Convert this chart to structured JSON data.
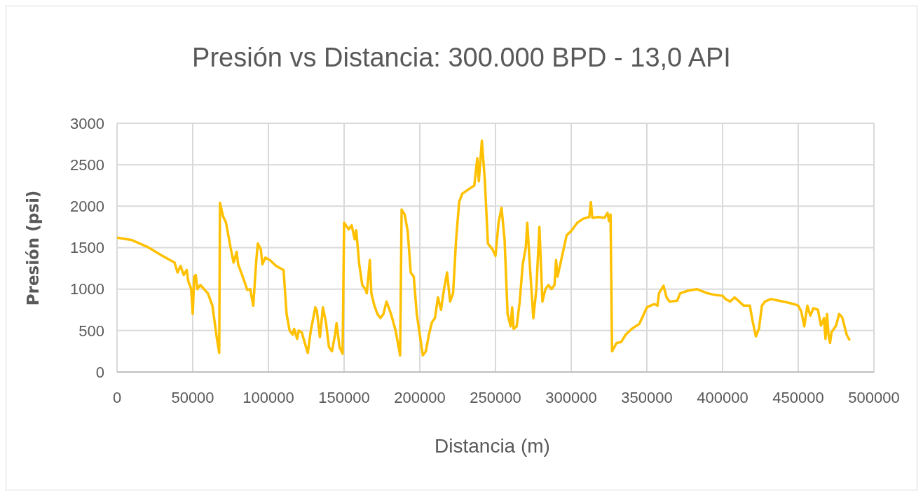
{
  "chart_data": {
    "type": "line",
    "title": "Presión vs Distancia: 300.000 BPD - 13,0 API",
    "xlabel": "Distancia (m)",
    "ylabel": "Presión (psi)",
    "x": [
      0,
      10000,
      20000,
      30000,
      38000,
      40000,
      42000,
      44000,
      46000,
      47000,
      49000,
      50000,
      51000,
      52000,
      53000,
      55000,
      60000,
      63000,
      66000,
      67500,
      68000,
      70000,
      72000,
      75000,
      77000,
      79000,
      80000,
      84000,
      86000,
      88000,
      90000,
      92000,
      93000,
      95000,
      96000,
      98000,
      101000,
      105000,
      110000,
      112000,
      114000,
      116000,
      117000,
      119000,
      120000,
      122000,
      124000,
      126000,
      128000,
      131000,
      132000,
      134000,
      136000,
      138000,
      140000,
      142000,
      144000,
      145000,
      147000,
      149000,
      150000,
      152000,
      153000,
      155000,
      157000,
      158000,
      160000,
      162000,
      164000,
      165000,
      167000,
      168000,
      170000,
      172000,
      174000,
      176000,
      178000,
      181000,
      184000,
      186000,
      187000,
      188000,
      190000,
      192000,
      194000,
      196000,
      198000,
      200000,
      202000,
      204000,
      206000,
      208000,
      210000,
      212000,
      214000,
      216000,
      218000,
      220000,
      222000,
      224000,
      226000,
      228000,
      232000,
      236000,
      238000,
      239000,
      241000,
      243000,
      245000,
      248000,
      250000,
      252000,
      254000,
      256000,
      258000,
      260000,
      261000,
      262000,
      264000,
      266000,
      268000,
      270000,
      271000,
      273000,
      275000,
      277000,
      279000,
      281000,
      283000,
      285000,
      287000,
      289000,
      290000,
      291000,
      294000,
      297000,
      300000,
      304000,
      308000,
      312000,
      313000,
      314000,
      318000,
      322000,
      324000,
      325000,
      326000,
      327000,
      330000,
      333000,
      336000,
      340000,
      345000,
      348000,
      350000,
      355000,
      357000,
      358000,
      361000,
      363000,
      365000,
      370000,
      372000,
      377000,
      383000,
      390000,
      395000,
      400000,
      402000,
      405000,
      408000,
      411000,
      414000,
      418000,
      420000,
      422000,
      424000,
      426000,
      428000,
      432000,
      440000,
      447000,
      450000,
      452000,
      454000,
      456000,
      458000,
      460000,
      463000,
      465000,
      467000,
      468000,
      469000,
      470000,
      471000,
      472000,
      475000,
      477000,
      479000,
      482000,
      484000
    ],
    "series": [
      {
        "color": "#ffc000",
        "values": [
          1620,
          1590,
          1510,
          1400,
          1320,
          1200,
          1280,
          1170,
          1230,
          1100,
          1000,
          700,
          1150,
          1170,
          1000,
          1050,
          950,
          800,
          400,
          230,
          2040,
          1880,
          1800,
          1500,
          1320,
          1450,
          1300,
          1100,
          990,
          1000,
          800,
          1350,
          1550,
          1480,
          1300,
          1380,
          1350,
          1280,
          1230,
          700,
          500,
          450,
          520,
          400,
          500,
          480,
          350,
          230,
          500,
          780,
          740,
          420,
          780,
          600,
          300,
          250,
          450,
          590,
          300,
          220,
          1800,
          1750,
          1720,
          1770,
          1600,
          1710,
          1300,
          1050,
          1000,
          950,
          1350,
          950,
          800,
          700,
          650,
          700,
          850,
          700,
          500,
          300,
          200,
          1960,
          1900,
          1700,
          1200,
          1150,
          700,
          450,
          200,
          250,
          450,
          600,
          650,
          900,
          750,
          1000,
          1200,
          850,
          950,
          1600,
          2050,
          2150,
          2200,
          2250,
          2580,
          2300,
          2790,
          2300,
          1550,
          1480,
          1400,
          1800,
          1980,
          1600,
          700,
          550,
          780,
          520,
          550,
          850,
          1300,
          1500,
          1800,
          1200,
          650,
          1000,
          1750,
          850,
          1000,
          1050,
          1000,
          1050,
          1350,
          1150,
          1400,
          1650,
          1700,
          1800,
          1850,
          1870,
          2050,
          1860,
          1870,
          1860,
          1920,
          1820,
          1900,
          250,
          350,
          360,
          450,
          520,
          580,
          700,
          780,
          820,
          800,
          950,
          1040,
          900,
          850,
          860,
          950,
          980,
          1000,
          950,
          930,
          920,
          880,
          850,
          900,
          850,
          800,
          800,
          600,
          430,
          520,
          800,
          850,
          880,
          850,
          820,
          800,
          730,
          550,
          800,
          680,
          770,
          750,
          560,
          650,
          400,
          700,
          450,
          350,
          480,
          560,
          700,
          660,
          450,
          380
        ]
      }
    ],
    "xlim": [
      0,
      500000
    ],
    "xticks": [
      0,
      50000,
      100000,
      150000,
      200000,
      250000,
      300000,
      350000,
      400000,
      450000,
      500000
    ],
    "ylim": [
      0,
      3000
    ],
    "yticks": [
      0,
      500,
      1000,
      1500,
      2000,
      2500,
      3000
    ],
    "grid": true,
    "marker": "none",
    "line_style": "solid"
  }
}
